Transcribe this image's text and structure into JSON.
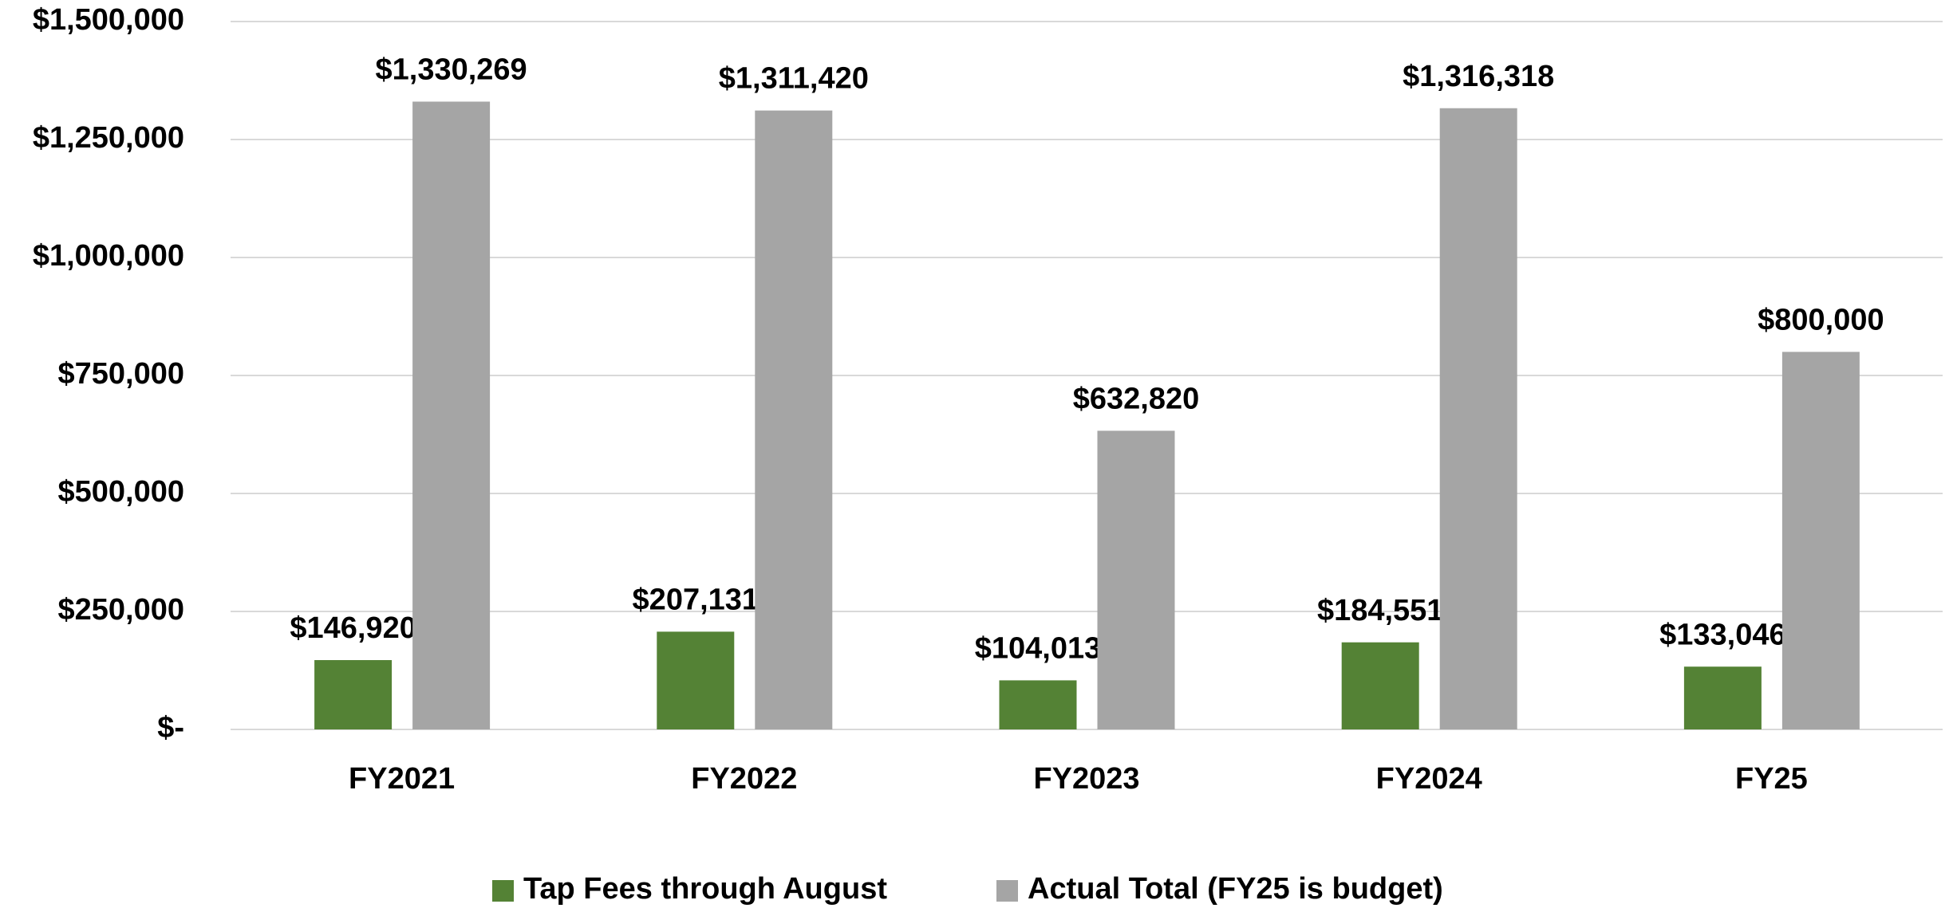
{
  "chart_data": {
    "type": "bar",
    "categories": [
      "FY2021",
      "FY2022",
      "FY2023",
      "FY2024",
      "FY25"
    ],
    "series": [
      {
        "name": "Tap Fees through August",
        "color": "#548235",
        "values": [
          146920,
          207131,
          104013,
          184551,
          133046
        ],
        "value_labels": [
          "$146,920",
          "$207,131",
          "$104,013",
          "$184,551",
          "$133,046"
        ]
      },
      {
        "name": "Actual Total (FY25 is budget)",
        "color": "#a5a5a5",
        "values": [
          1330269,
          1311420,
          632820,
          1316318,
          800000
        ],
        "value_labels": [
          "$1,330,269",
          "$1,311,420",
          "$632,820",
          "$1,316,318",
          "$800,000"
        ]
      }
    ],
    "ylim": [
      0,
      1500000
    ],
    "yticks": [
      {
        "value": 0,
        "label": "$-"
      },
      {
        "value": 250000,
        "label": "$250,000"
      },
      {
        "value": 500000,
        "label": "$500,000"
      },
      {
        "value": 750000,
        "label": "$750,000"
      },
      {
        "value": 1000000,
        "label": "$1,000,000"
      },
      {
        "value": 1250000,
        "label": "$1,250,000"
      },
      {
        "value": 1500000,
        "label": "$1,500,000"
      }
    ],
    "grid": true,
    "legend": "bottom"
  }
}
